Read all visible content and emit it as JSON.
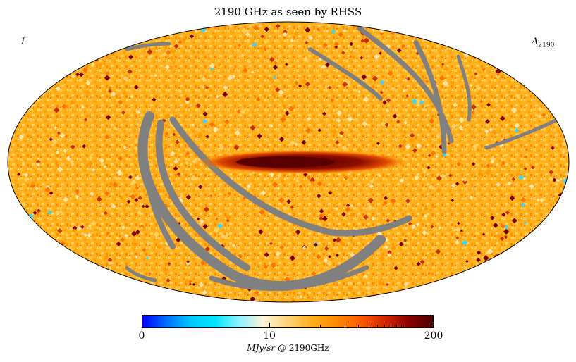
{
  "title": "2190 GHz as seen by RHSS",
  "stokes_label": "I",
  "component": {
    "symbol": "A",
    "subscript": "2190"
  },
  "colorbar": {
    "min_label": "0",
    "mid_label": "10",
    "max_label": "200",
    "units": "MJy/sr",
    "units_suffix": "@ 2190GHz",
    "colors": [
      "#0000ff",
      "#0070ff",
      "#00c8ff",
      "#00e6ff",
      "#8ef2ff",
      "#fff3d8",
      "#ffd37a",
      "#ffae1a",
      "#ff8a00",
      "#ff5c00",
      "#d42800",
      "#8c0000",
      "#4a0000"
    ]
  },
  "map_colors": {
    "background": "#ffb21a",
    "masked": "#808080",
    "plane": "#6e0000"
  }
}
